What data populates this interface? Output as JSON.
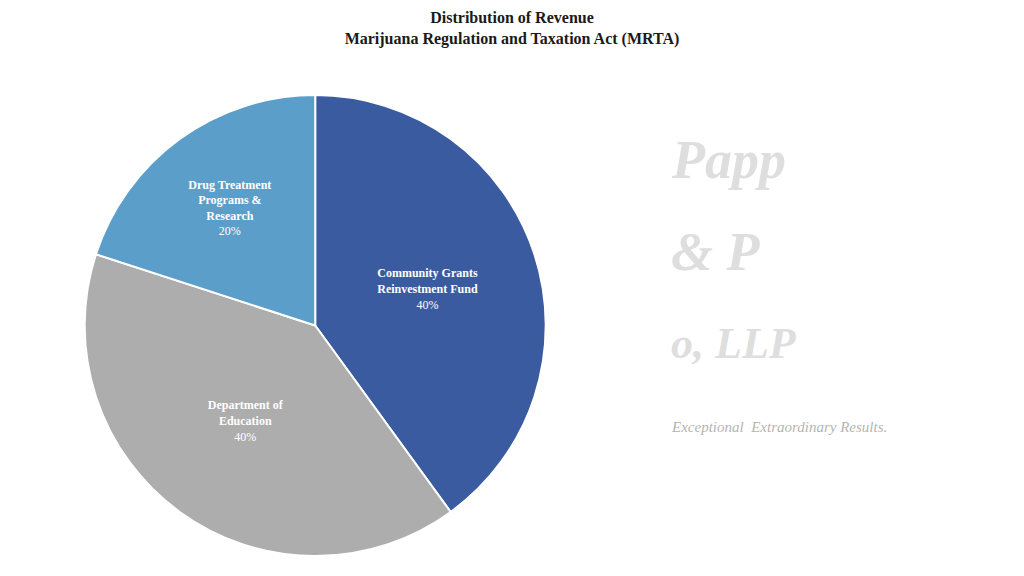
{
  "chart_data": {
    "type": "pie",
    "title": "Distribution of Revenue",
    "subtitle": "Marijuana Regulation and Taxation Act (MRTA)",
    "categories": [
      "Community Grants\nReinvestment Fund",
      "Department of\nEducation",
      "Drug Treatment\nPrograms &\nResearch"
    ],
    "values": [
      40,
      40,
      20
    ],
    "value_labels": [
      "40%",
      "40%",
      "20%"
    ],
    "colors": [
      "#3A5BA0",
      "#ADADAD",
      "#5B9EC9"
    ],
    "data_labels": true,
    "annotations": [
      "Papp",
      "& P",
      "o, LLP",
      "Exceptional  Extraordinary Results."
    ]
  }
}
